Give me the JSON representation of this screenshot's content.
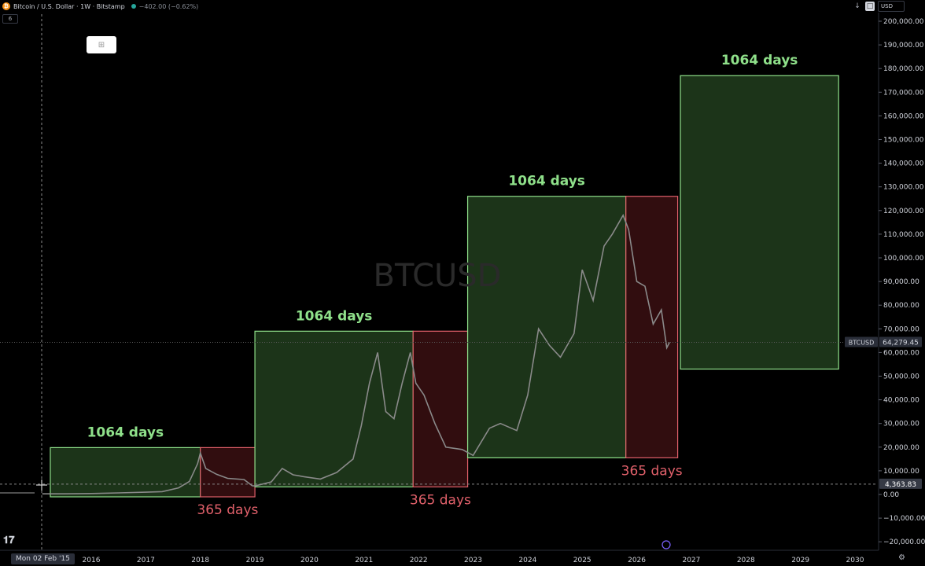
{
  "header": {
    "logo_letter": "₿",
    "symbol_title": "Bitcoin / U.S. Dollar · 1W · Bitstamp",
    "change": "−402.00 (−0.62%)",
    "interval_badge": "6"
  },
  "toolbar_right": {
    "down_arrow_icon": "↓",
    "square_icon": "□",
    "currency": "USD"
  },
  "watermark": "BTCUSD",
  "y_axis": {
    "ticks": [
      {
        "value": 200000,
        "label": "200,000.00"
      },
      {
        "value": 190000,
        "label": "190,000.00"
      },
      {
        "value": 180000,
        "label": "180,000.00"
      },
      {
        "value": 170000,
        "label": "170,000.00"
      },
      {
        "value": 160000,
        "label": "160,000.00"
      },
      {
        "value": 150000,
        "label": "150,000.00"
      },
      {
        "value": 140000,
        "label": "140,000.00"
      },
      {
        "value": 130000,
        "label": "130,000.00"
      },
      {
        "value": 120000,
        "label": "120,000.00"
      },
      {
        "value": 110000,
        "label": "110,000.00"
      },
      {
        "value": 100000,
        "label": "100,000.00"
      },
      {
        "value": 90000,
        "label": "90,000.00"
      },
      {
        "value": 80000,
        "label": "80,000.00"
      },
      {
        "value": 70000,
        "label": "70,000.00"
      },
      {
        "value": 60000,
        "label": "60,000.00"
      },
      {
        "value": 50000,
        "label": "50,000.00"
      },
      {
        "value": 40000,
        "label": "40,000.00"
      },
      {
        "value": 30000,
        "label": "30,000.00"
      },
      {
        "value": 20000,
        "label": "20,000.00"
      },
      {
        "value": 10000,
        "label": "10,000.00"
      },
      {
        "value": 0,
        "label": "0.00"
      },
      {
        "value": -10000,
        "label": "−10,000.00"
      },
      {
        "value": -20000,
        "label": "−20,000.00"
      }
    ]
  },
  "x_axis": {
    "date_tag": "Mon 02 Feb '15",
    "ticks": [
      {
        "year": 2016,
        "label": "2016"
      },
      {
        "year": 2017,
        "label": "2017"
      },
      {
        "year": 2018,
        "label": "2018"
      },
      {
        "year": 2019,
        "label": "2019"
      },
      {
        "year": 2020,
        "label": "2020"
      },
      {
        "year": 2021,
        "label": "2021"
      },
      {
        "year": 2022,
        "label": "2022"
      },
      {
        "year": 2023,
        "label": "2023"
      },
      {
        "year": 2024,
        "label": "2024"
      },
      {
        "year": 2025,
        "label": "2025"
      },
      {
        "year": 2026,
        "label": "2026"
      },
      {
        "year": 2027,
        "label": "2027"
      },
      {
        "year": 2028,
        "label": "2028"
      },
      {
        "year": 2029,
        "label": "2029"
      },
      {
        "year": 2030,
        "label": "2030"
      }
    ]
  },
  "price_labels": {
    "current_symbol": "BTCUSD",
    "current_value": "64,279.45",
    "current_price": 64279,
    "crosshair_value": "4,363.83",
    "crosshair_price": 4364
  },
  "colors": {
    "bull_fill": "#1f3a1c",
    "bull_stroke": "#8fe08a",
    "bull_text": "#8fe08a",
    "bear_fill": "#3a0f12",
    "bear_stroke": "#e0606a",
    "bear_text": "#e0606a",
    "price_line": "#8a8a8a"
  },
  "cycles": [
    {
      "type": "bull",
      "start": 2015.25,
      "end": 2018.0,
      "low": -1000,
      "high": 19800,
      "label": "1064 days"
    },
    {
      "type": "bear",
      "start": 2018.0,
      "end": 2019.0,
      "low": -1000,
      "high": 19800,
      "label": "365 days"
    },
    {
      "type": "bull",
      "start": 2019.0,
      "end": 2021.9,
      "low": 3200,
      "high": 69000,
      "label": "1064 days"
    },
    {
      "type": "bear",
      "start": 2021.9,
      "end": 2022.9,
      "low": 3200,
      "high": 69000,
      "label": "365 days"
    },
    {
      "type": "bull",
      "start": 2022.9,
      "end": 2025.8,
      "low": 15500,
      "high": 126000,
      "label": "1064 days"
    },
    {
      "type": "bear",
      "start": 2025.8,
      "end": 2026.75,
      "low": 15500,
      "high": 126000,
      "label": "365 days"
    },
    {
      "type": "bull",
      "start": 2026.8,
      "end": 2029.7,
      "low": 53000,
      "high": 177000,
      "label": "1064 days"
    }
  ],
  "chart_data": {
    "type": "line",
    "title": "Bitcoin / U.S. Dollar · 1W · Bitstamp",
    "xlabel": "",
    "ylabel": "",
    "xlim": [
      2015.1,
      2030.1
    ],
    "ylim": [
      -22000,
      204000
    ],
    "grid": false,
    "series": [
      {
        "name": "BTCUSD",
        "x": [
          2015.1,
          2015.5,
          2016.0,
          2016.5,
          2017.0,
          2017.3,
          2017.6,
          2017.8,
          2017.95,
          2018.0,
          2018.1,
          2018.3,
          2018.5,
          2018.8,
          2018.95,
          2019.0,
          2019.3,
          2019.5,
          2019.7,
          2019.9,
          2020.2,
          2020.5,
          2020.8,
          2020.95,
          2021.1,
          2021.25,
          2021.4,
          2021.55,
          2021.7,
          2021.85,
          2021.95,
          2022.1,
          2022.3,
          2022.5,
          2022.8,
          2023.0,
          2023.3,
          2023.5,
          2023.8,
          2024.0,
          2024.2,
          2024.4,
          2024.6,
          2024.85,
          2025.0,
          2025.2,
          2025.4,
          2025.55,
          2025.75,
          2025.85,
          2026.0,
          2026.15,
          2026.3,
          2026.45,
          2026.55,
          2026.6
        ],
        "values": [
          250,
          260,
          400,
          650,
          950,
          1200,
          2800,
          5500,
          13000,
          17500,
          11000,
          8500,
          6800,
          6300,
          3700,
          3600,
          5300,
          11000,
          8300,
          7500,
          6500,
          9300,
          15000,
          29000,
          47000,
          60000,
          35000,
          32000,
          47000,
          60000,
          47000,
          42000,
          30000,
          20000,
          19000,
          16500,
          28000,
          30000,
          27000,
          42000,
          70000,
          63000,
          58000,
          68000,
          95000,
          82000,
          105000,
          110000,
          118000,
          112000,
          90000,
          88000,
          72000,
          78000,
          62000,
          64279
        ]
      }
    ],
    "rectangles": [
      {
        "kind": "bull",
        "label": "1064 days",
        "x": [
          2015.25,
          2018.0
        ],
        "y": [
          -1000,
          19800
        ]
      },
      {
        "kind": "bear",
        "label": "365 days",
        "x": [
          2018.0,
          2019.0
        ],
        "y": [
          -1000,
          19800
        ]
      },
      {
        "kind": "bull",
        "label": "1064 days",
        "x": [
          2019.0,
          2021.9
        ],
        "y": [
          3200,
          69000
        ]
      },
      {
        "kind": "bear",
        "label": "365 days",
        "x": [
          2021.9,
          2022.9
        ],
        "y": [
          3200,
          69000
        ]
      },
      {
        "kind": "bull",
        "label": "1064 days",
        "x": [
          2022.9,
          2025.8
        ],
        "y": [
          15500,
          126000
        ]
      },
      {
        "kind": "bear",
        "label": "365 days",
        "x": [
          2025.8,
          2026.75
        ],
        "y": [
          15500,
          126000
        ]
      },
      {
        "kind": "bull",
        "label": "1064 days",
        "x": [
          2026.8,
          2029.7
        ],
        "y": [
          53000,
          177000
        ]
      }
    ]
  }
}
